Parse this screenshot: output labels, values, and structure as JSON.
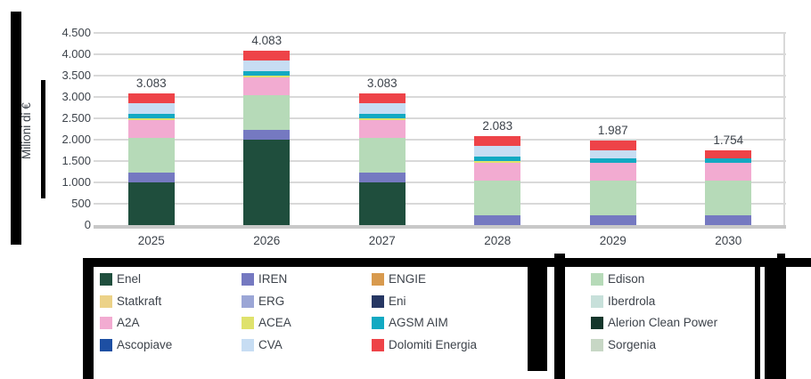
{
  "chart_data": {
    "type": "bar",
    "stacked": true,
    "title": "",
    "xlabel": "",
    "ylabel": "Milioni di €",
    "ylim": [
      0,
      4500
    ],
    "ytick_step": 500,
    "ytick_labels": [
      "0",
      "500",
      "1.000",
      "1.500",
      "2.000",
      "2.500",
      "3.000",
      "3.500",
      "4.000",
      "4.500"
    ],
    "grid": true,
    "legend_position": "bottom",
    "categories": [
      "2025",
      "2026",
      "2027",
      "2028",
      "2029",
      "2030"
    ],
    "series": [
      {
        "name": "Enel",
        "color": "#1f4e3d",
        "values": [
          1000,
          2000,
          1000,
          0,
          0,
          0
        ]
      },
      {
        "name": "IREN",
        "color": "#7579c1",
        "values": [
          230,
          230,
          230,
          230,
          230,
          230
        ]
      },
      {
        "name": "Edison",
        "color": "#b6dab8",
        "values": [
          820,
          820,
          820,
          820,
          820,
          820
        ]
      },
      {
        "name": "A2A",
        "color": "#f2abd1",
        "values": [
          400,
          400,
          400,
          400,
          400,
          400
        ]
      },
      {
        "name": "ACEA",
        "color": "#dfe26c",
        "values": [
          50,
          50,
          50,
          50,
          0,
          0
        ]
      },
      {
        "name": "AGSM AIM",
        "color": "#12a9c2",
        "values": [
          110,
          110,
          110,
          110,
          110,
          110
        ]
      },
      {
        "name": "CVA",
        "color": "#c7ddf3",
        "values": [
          240,
          240,
          240,
          240,
          194,
          0
        ]
      },
      {
        "name": "Dolomiti Energia",
        "color": "#ee4348",
        "values": [
          233,
          233,
          233,
          233,
          233,
          194
        ]
      }
    ],
    "totals": [
      3083,
      4083,
      3083,
      2083,
      1987,
      1754
    ],
    "total_labels": [
      "3.083",
      "4.083",
      "3.083",
      "2.083",
      "1.987",
      "1.754"
    ]
  },
  "legend": {
    "columns": [
      [
        {
          "label": "Enel",
          "color": "#1f4e3d"
        },
        {
          "label": "Statkraft",
          "color": "#ecd288"
        },
        {
          "label": "A2A",
          "color": "#f2abd1"
        },
        {
          "label": "Ascopiave",
          "color": "#1d4fa3"
        }
      ],
      [
        {
          "label": "IREN",
          "color": "#7579c1"
        },
        {
          "label": "ERG",
          "color": "#9ba6d6"
        },
        {
          "label": "ACEA",
          "color": "#dfe26c"
        },
        {
          "label": "CVA",
          "color": "#c7ddf3"
        }
      ],
      [
        {
          "label": "ENGIE",
          "color": "#d89a4e"
        },
        {
          "label": "Eni",
          "color": "#263763"
        },
        {
          "label": "AGSM AIM",
          "color": "#12a9c2"
        },
        {
          "label": "Dolomiti Energia",
          "color": "#ee4348"
        }
      ],
      [
        {
          "label": "Edison",
          "color": "#b6dab8"
        },
        {
          "label": "Iberdrola",
          "color": "#c7e0da"
        },
        {
          "label": "Alerion Clean Power",
          "color": "#14362b"
        },
        {
          "label": "Sorgenia",
          "color": "#c7d7c5"
        }
      ]
    ]
  },
  "colors": {
    "text": "#3d434b",
    "gridline": "#d9d9d9",
    "axis_line": "#c8c8c8",
    "redaction": "#000000"
  }
}
